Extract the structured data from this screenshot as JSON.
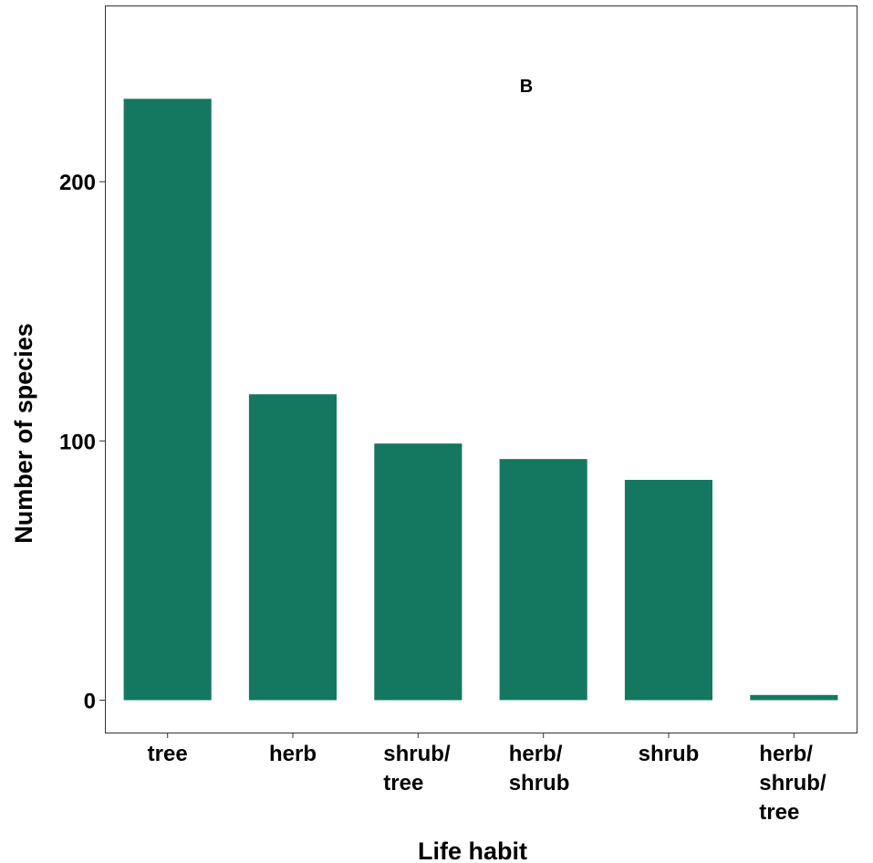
{
  "chart_data": {
    "type": "bar",
    "panel_label": "B",
    "xlabel": "Life habit",
    "ylabel": "Number of species",
    "categories": [
      [
        "tree"
      ],
      [
        "herb"
      ],
      [
        "shrub/",
        "tree"
      ],
      [
        "herb/",
        "shrub"
      ],
      [
        "shrub"
      ],
      [
        "herb/",
        "shrub/",
        "tree"
      ]
    ],
    "values": [
      232,
      118,
      99,
      93,
      85,
      2
    ],
    "ylim": [
      -12.5,
      268
    ],
    "yticks": [
      0,
      100,
      200
    ],
    "grid": false,
    "legend": "none",
    "bar_color": "#13785F"
  }
}
